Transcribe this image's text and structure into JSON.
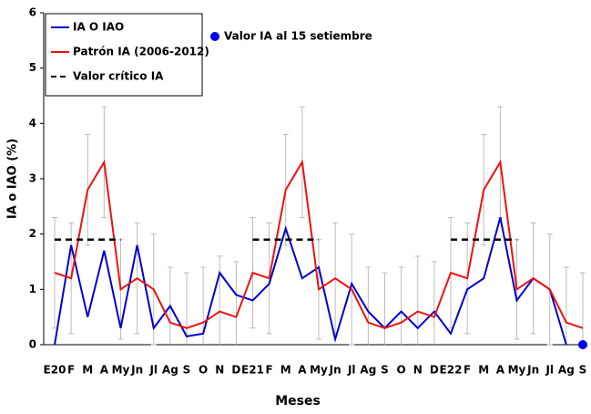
{
  "chart_data": {
    "type": "line",
    "x_label": "Meses",
    "y_label": "IA o IAO (%)",
    "categories": [
      "E20",
      "F",
      "M",
      "A",
      "My",
      "Jn",
      "Jl",
      "Ag",
      "S",
      "O",
      "N",
      "D",
      "E21",
      "F",
      "M",
      "A",
      "My",
      "Jn",
      "Jl",
      "Ag",
      "S",
      "O",
      "N",
      "D",
      "E22",
      "F",
      "M",
      "A",
      "My",
      "Jn",
      "Jl",
      "Ag",
      "S"
    ],
    "ylim": [
      0,
      6
    ],
    "yticks": [
      0,
      1,
      2,
      3,
      4,
      5,
      6
    ],
    "grid": false,
    "series": [
      {
        "name": "IA O IAO",
        "color": "#0000cc",
        "values": [
          0,
          1.8,
          0.5,
          1.7,
          0.3,
          1.8,
          0.3,
          0.7,
          0.15,
          0.2,
          1.3,
          0.9,
          0.8,
          1.1,
          2.1,
          1.2,
          1.4,
          0.1,
          1.1,
          0.6,
          0.3,
          0.6,
          0.3,
          0.6,
          0.2,
          1.0,
          1.2,
          2.3,
          0.8,
          1.2,
          1.0,
          0,
          null
        ]
      },
      {
        "name": "Patrón IA (2006-2012)",
        "color": "#ee1111",
        "values": [
          1.3,
          1.2,
          2.8,
          3.3,
          1.0,
          1.2,
          1.0,
          0.4,
          0.3,
          0.4,
          0.6,
          0.5,
          1.3,
          1.2,
          2.8,
          3.3,
          1.0,
          1.2,
          1.0,
          0.4,
          0.3,
          0.4,
          0.6,
          0.5,
          1.3,
          1.2,
          2.8,
          3.3,
          1.0,
          1.2,
          1.0,
          0.4,
          0.3
        ],
        "error": [
          1,
          1,
          1,
          1,
          0.9,
          1,
          1,
          1,
          1,
          1,
          1,
          1,
          1,
          1,
          1,
          1,
          0.9,
          1,
          1,
          1,
          1,
          1,
          1,
          1,
          1,
          1,
          1,
          1,
          0.9,
          1,
          1,
          1,
          1
        ],
        "error_color": "#bbbbbb"
      },
      {
        "name": "Valor crítico IA",
        "color": "#000000",
        "dash": true,
        "values": [
          1.9,
          1.9,
          1.9,
          1.9,
          1.9,
          null,
          null,
          null,
          null,
          null,
          null,
          null,
          1.9,
          1.9,
          1.9,
          1.9,
          1.9,
          null,
          null,
          null,
          null,
          null,
          null,
          null,
          1.9,
          1.9,
          1.9,
          1.9,
          1.9,
          null,
          null,
          null,
          null
        ]
      },
      {
        "name": "Valor IA al 15 setiembre",
        "color": "#0000ee",
        "marker": "point",
        "values": [
          null,
          null,
          null,
          null,
          null,
          null,
          null,
          null,
          null,
          null,
          null,
          null,
          null,
          null,
          null,
          null,
          null,
          null,
          null,
          null,
          null,
          null,
          null,
          null,
          null,
          null,
          null,
          null,
          null,
          null,
          null,
          null,
          0
        ]
      }
    ]
  }
}
